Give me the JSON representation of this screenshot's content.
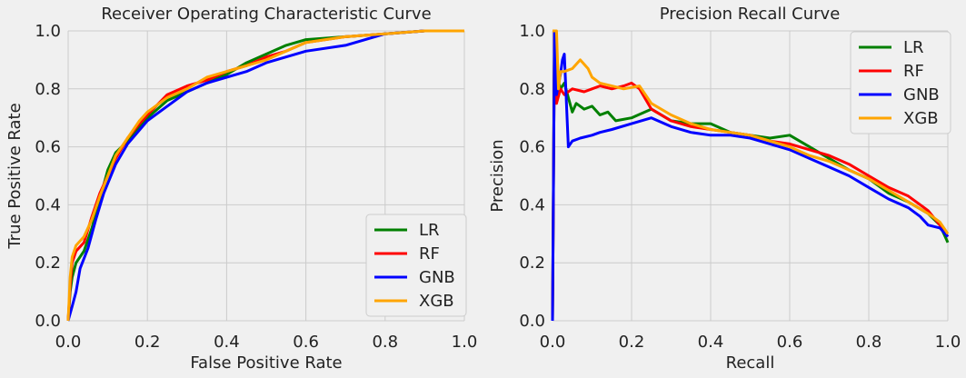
{
  "chart_data": [
    {
      "type": "line",
      "title": "Receiver Operating Characteristic Curve",
      "xlabel": "False Positive Rate",
      "ylabel": "True Positive Rate",
      "xlim": [
        0,
        1
      ],
      "ylim": [
        0,
        1
      ],
      "xticks": [
        "0.0",
        "0.2",
        "0.4",
        "0.6",
        "0.8",
        "1.0"
      ],
      "yticks": [
        "0.0",
        "0.2",
        "0.4",
        "0.6",
        "0.8",
        "1.0"
      ],
      "grid": true,
      "legend_position": "lower-right",
      "series": [
        {
          "name": "LR",
          "color": "#008000",
          "points": [
            [
              0,
              0
            ],
            [
              0.005,
              0.1
            ],
            [
              0.01,
              0.15
            ],
            [
              0.02,
              0.2
            ],
            [
              0.04,
              0.24
            ],
            [
              0.06,
              0.32
            ],
            [
              0.08,
              0.42
            ],
            [
              0.1,
              0.52
            ],
            [
              0.12,
              0.58
            ],
            [
              0.15,
              0.62
            ],
            [
              0.18,
              0.67
            ],
            [
              0.2,
              0.7
            ],
            [
              0.25,
              0.76
            ],
            [
              0.3,
              0.79
            ],
            [
              0.35,
              0.82
            ],
            [
              0.4,
              0.85
            ],
            [
              0.45,
              0.89
            ],
            [
              0.5,
              0.92
            ],
            [
              0.55,
              0.95
            ],
            [
              0.6,
              0.97
            ],
            [
              0.7,
              0.98
            ],
            [
              0.8,
              0.99
            ],
            [
              0.9,
              1.0
            ],
            [
              1.0,
              1.0
            ]
          ]
        },
        {
          "name": "RF",
          "color": "#ff0000",
          "points": [
            [
              0,
              0
            ],
            [
              0.005,
              0.12
            ],
            [
              0.01,
              0.2
            ],
            [
              0.02,
              0.24
            ],
            [
              0.04,
              0.27
            ],
            [
              0.06,
              0.36
            ],
            [
              0.08,
              0.44
            ],
            [
              0.1,
              0.5
            ],
            [
              0.12,
              0.56
            ],
            [
              0.15,
              0.63
            ],
            [
              0.18,
              0.68
            ],
            [
              0.2,
              0.71
            ],
            [
              0.25,
              0.78
            ],
            [
              0.3,
              0.81
            ],
            [
              0.35,
              0.83
            ],
            [
              0.4,
              0.86
            ],
            [
              0.45,
              0.88
            ],
            [
              0.5,
              0.91
            ],
            [
              0.55,
              0.93
            ],
            [
              0.6,
              0.96
            ],
            [
              0.7,
              0.98
            ],
            [
              0.8,
              0.99
            ],
            [
              0.9,
              1.0
            ],
            [
              1.0,
              1.0
            ]
          ]
        },
        {
          "name": "GNB",
          "color": "#0000ff",
          "points": [
            [
              0,
              0
            ],
            [
              0.01,
              0.05
            ],
            [
              0.02,
              0.1
            ],
            [
              0.03,
              0.18
            ],
            [
              0.05,
              0.25
            ],
            [
              0.07,
              0.35
            ],
            [
              0.09,
              0.44
            ],
            [
              0.12,
              0.54
            ],
            [
              0.15,
              0.61
            ],
            [
              0.2,
              0.69
            ],
            [
              0.25,
              0.74
            ],
            [
              0.3,
              0.79
            ],
            [
              0.35,
              0.82
            ],
            [
              0.4,
              0.84
            ],
            [
              0.45,
              0.86
            ],
            [
              0.5,
              0.89
            ],
            [
              0.55,
              0.91
            ],
            [
              0.6,
              0.93
            ],
            [
              0.7,
              0.95
            ],
            [
              0.75,
              0.97
            ],
            [
              0.8,
              0.99
            ],
            [
              0.9,
              1.0
            ],
            [
              1.0,
              1.0
            ]
          ]
        },
        {
          "name": "XGB",
          "color": "#ffa500",
          "points": [
            [
              0,
              0
            ],
            [
              0.005,
              0.15
            ],
            [
              0.01,
              0.22
            ],
            [
              0.02,
              0.26
            ],
            [
              0.04,
              0.29
            ],
            [
              0.06,
              0.35
            ],
            [
              0.08,
              0.43
            ],
            [
              0.1,
              0.5
            ],
            [
              0.12,
              0.57
            ],
            [
              0.15,
              0.63
            ],
            [
              0.18,
              0.69
            ],
            [
              0.2,
              0.72
            ],
            [
              0.25,
              0.77
            ],
            [
              0.3,
              0.8
            ],
            [
              0.35,
              0.84
            ],
            [
              0.4,
              0.86
            ],
            [
              0.45,
              0.88
            ],
            [
              0.5,
              0.9
            ],
            [
              0.55,
              0.93
            ],
            [
              0.6,
              0.96
            ],
            [
              0.7,
              0.98
            ],
            [
              0.8,
              0.99
            ],
            [
              0.9,
              1.0
            ],
            [
              1.0,
              1.0
            ]
          ]
        }
      ]
    },
    {
      "type": "line",
      "title": "Precision Recall Curve",
      "xlabel": "Recall",
      "ylabel": "Precision",
      "xlim": [
        0,
        1
      ],
      "ylim": [
        0,
        1
      ],
      "xticks": [
        "0.0",
        "0.2",
        "0.4",
        "0.6",
        "0.8",
        "1.0"
      ],
      "yticks": [
        "0.0",
        "0.2",
        "0.4",
        "0.6",
        "0.8",
        "1.0"
      ],
      "grid": true,
      "legend_position": "upper-right",
      "series": [
        {
          "name": "LR",
          "color": "#008000",
          "points": [
            [
              0,
              0.0
            ],
            [
              0.005,
              1.0
            ],
            [
              0.01,
              0.85
            ],
            [
              0.02,
              0.8
            ],
            [
              0.03,
              0.82
            ],
            [
              0.04,
              0.77
            ],
            [
              0.05,
              0.72
            ],
            [
              0.06,
              0.75
            ],
            [
              0.08,
              0.73
            ],
            [
              0.1,
              0.74
            ],
            [
              0.12,
              0.71
            ],
            [
              0.14,
              0.72
            ],
            [
              0.16,
              0.69
            ],
            [
              0.2,
              0.7
            ],
            [
              0.25,
              0.73
            ],
            [
              0.3,
              0.69
            ],
            [
              0.35,
              0.68
            ],
            [
              0.4,
              0.68
            ],
            [
              0.45,
              0.65
            ],
            [
              0.5,
              0.64
            ],
            [
              0.55,
              0.63
            ],
            [
              0.6,
              0.64
            ],
            [
              0.65,
              0.6
            ],
            [
              0.7,
              0.56
            ],
            [
              0.75,
              0.52
            ],
            [
              0.8,
              0.49
            ],
            [
              0.85,
              0.44
            ],
            [
              0.9,
              0.41
            ],
            [
              0.95,
              0.37
            ],
            [
              0.98,
              0.33
            ],
            [
              1.0,
              0.27
            ]
          ]
        },
        {
          "name": "RF",
          "color": "#ff0000",
          "points": [
            [
              0,
              0.0
            ],
            [
              0.005,
              1.0
            ],
            [
              0.01,
              0.75
            ],
            [
              0.02,
              0.8
            ],
            [
              0.03,
              0.78
            ],
            [
              0.05,
              0.8
            ],
            [
              0.08,
              0.79
            ],
            [
              0.1,
              0.8
            ],
            [
              0.12,
              0.81
            ],
            [
              0.15,
              0.8
            ],
            [
              0.18,
              0.81
            ],
            [
              0.2,
              0.82
            ],
            [
              0.22,
              0.8
            ],
            [
              0.25,
              0.73
            ],
            [
              0.3,
              0.69
            ],
            [
              0.35,
              0.67
            ],
            [
              0.4,
              0.66
            ],
            [
              0.45,
              0.65
            ],
            [
              0.5,
              0.64
            ],
            [
              0.55,
              0.62
            ],
            [
              0.6,
              0.61
            ],
            [
              0.65,
              0.59
            ],
            [
              0.7,
              0.57
            ],
            [
              0.75,
              0.54
            ],
            [
              0.8,
              0.5
            ],
            [
              0.85,
              0.46
            ],
            [
              0.9,
              0.43
            ],
            [
              0.95,
              0.38
            ],
            [
              0.98,
              0.33
            ],
            [
              1.0,
              0.29
            ]
          ]
        },
        {
          "name": "GNB",
          "color": "#0000ff",
          "points": [
            [
              0,
              0.0
            ],
            [
              0.005,
              1.0
            ],
            [
              0.01,
              0.78
            ],
            [
              0.02,
              0.85
            ],
            [
              0.025,
              0.9
            ],
            [
              0.03,
              0.92
            ],
            [
              0.04,
              0.6
            ],
            [
              0.05,
              0.62
            ],
            [
              0.07,
              0.63
            ],
            [
              0.1,
              0.64
            ],
            [
              0.12,
              0.65
            ],
            [
              0.15,
              0.66
            ],
            [
              0.2,
              0.68
            ],
            [
              0.25,
              0.7
            ],
            [
              0.3,
              0.67
            ],
            [
              0.35,
              0.65
            ],
            [
              0.4,
              0.64
            ],
            [
              0.45,
              0.64
            ],
            [
              0.5,
              0.63
            ],
            [
              0.55,
              0.61
            ],
            [
              0.6,
              0.59
            ],
            [
              0.65,
              0.56
            ],
            [
              0.7,
              0.53
            ],
            [
              0.75,
              0.5
            ],
            [
              0.8,
              0.46
            ],
            [
              0.85,
              0.42
            ],
            [
              0.9,
              0.39
            ],
            [
              0.93,
              0.36
            ],
            [
              0.95,
              0.33
            ],
            [
              0.98,
              0.32
            ],
            [
              1.0,
              0.29
            ]
          ]
        },
        {
          "name": "XGB",
          "color": "#ffa500",
          "points": [
            [
              0,
              1.0
            ],
            [
              0.01,
              1.0
            ],
            [
              0.015,
              0.8
            ],
            [
              0.02,
              0.86
            ],
            [
              0.03,
              0.86
            ],
            [
              0.05,
              0.87
            ],
            [
              0.07,
              0.9
            ],
            [
              0.09,
              0.87
            ],
            [
              0.1,
              0.84
            ],
            [
              0.12,
              0.82
            ],
            [
              0.15,
              0.81
            ],
            [
              0.18,
              0.8
            ],
            [
              0.22,
              0.81
            ],
            [
              0.25,
              0.75
            ],
            [
              0.3,
              0.71
            ],
            [
              0.35,
              0.68
            ],
            [
              0.4,
              0.66
            ],
            [
              0.45,
              0.65
            ],
            [
              0.5,
              0.64
            ],
            [
              0.55,
              0.62
            ],
            [
              0.6,
              0.6
            ],
            [
              0.65,
              0.57
            ],
            [
              0.7,
              0.55
            ],
            [
              0.75,
              0.52
            ],
            [
              0.8,
              0.49
            ],
            [
              0.85,
              0.45
            ],
            [
              0.9,
              0.41
            ],
            [
              0.95,
              0.37
            ],
            [
              0.98,
              0.34
            ],
            [
              1.0,
              0.3
            ]
          ]
        }
      ]
    }
  ]
}
